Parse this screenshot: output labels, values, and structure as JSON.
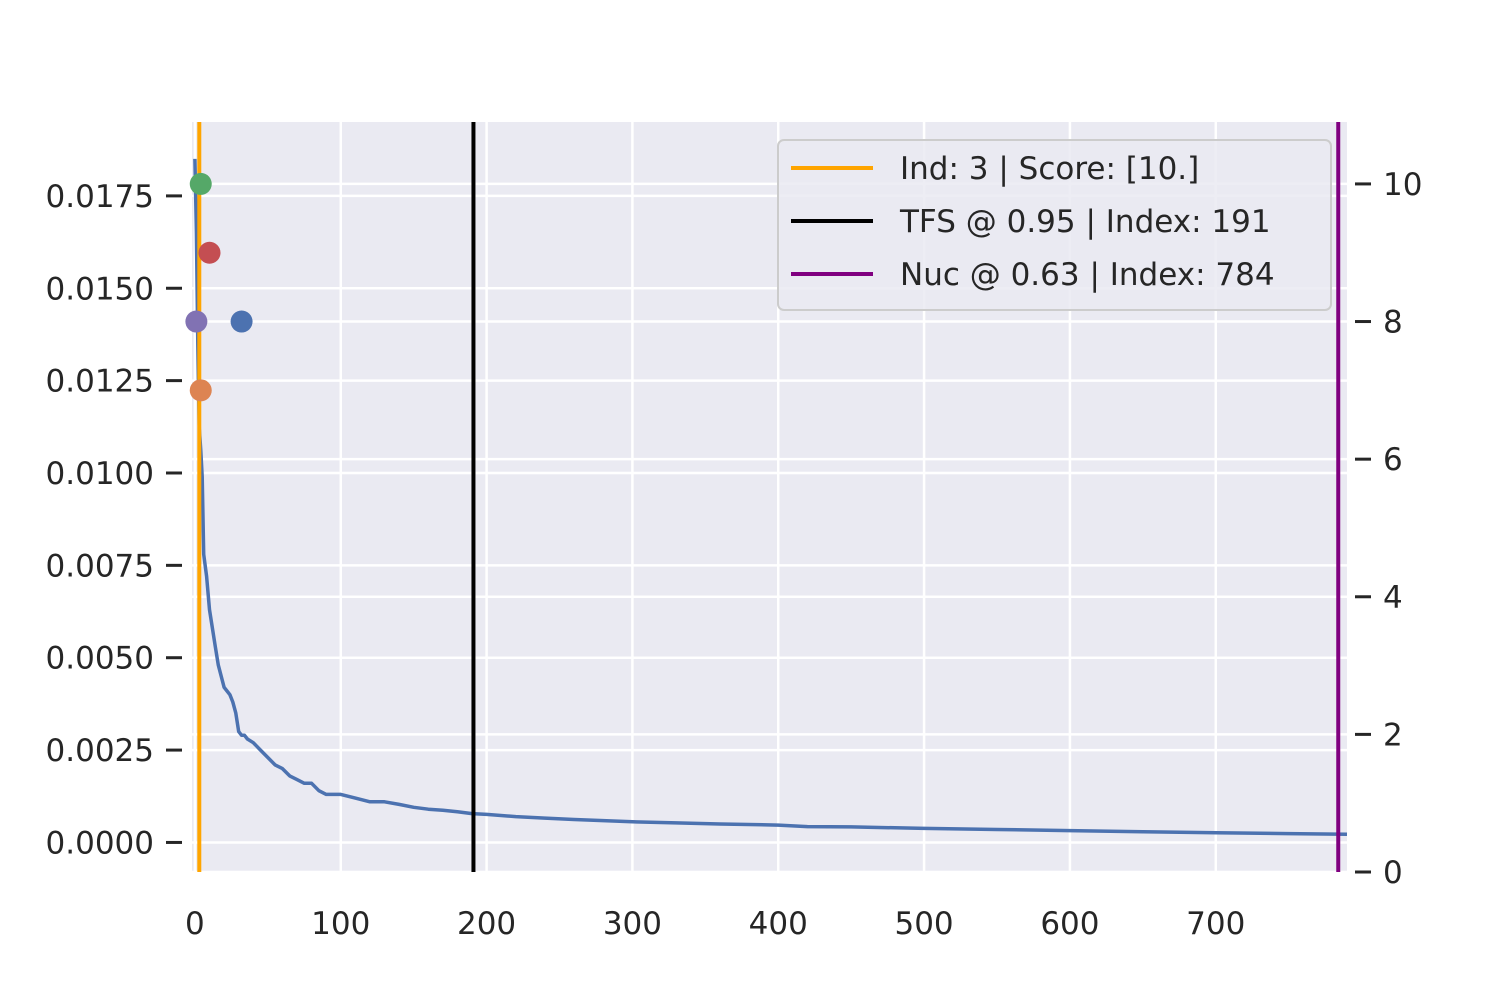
{
  "chart_data": {
    "type": "line",
    "title": "",
    "xlabel": "",
    "ylabel": "",
    "y2label": "",
    "grid": true,
    "legend_position": "top-right",
    "xlim": [
      -2,
      790
    ],
    "ylim": [
      -0.0008,
      0.0195
    ],
    "y2lim": [
      0,
      10.9
    ],
    "x_ticks": [
      "0",
      "100",
      "200",
      "300",
      "400",
      "500",
      "600",
      "700"
    ],
    "x_tick_values": [
      0,
      100,
      200,
      300,
      400,
      500,
      600,
      700
    ],
    "y_ticks": [
      "0.0000",
      "0.0025",
      "0.0050",
      "0.0075",
      "0.0100",
      "0.0125",
      "0.0150",
      "0.0175"
    ],
    "y_tick_values": [
      0,
      0.0025,
      0.005,
      0.0075,
      0.01,
      0.0125,
      0.015,
      0.0175
    ],
    "y2_ticks": [
      "0",
      "2",
      "4",
      "6",
      "8",
      "10"
    ],
    "y2_tick_values": [
      0,
      2,
      4,
      6,
      8,
      10
    ],
    "series": [
      {
        "axis": "left",
        "color": "#4c72b0",
        "x": [
          0,
          1,
          2,
          3,
          4,
          5,
          6,
          8,
          10,
          12,
          14,
          16,
          18,
          20,
          22,
          24,
          26,
          28,
          30,
          32,
          34,
          36,
          40,
          45,
          50,
          55,
          60,
          65,
          70,
          75,
          80,
          85,
          90,
          95,
          100,
          110,
          120,
          130,
          140,
          150,
          160,
          170,
          180,
          190,
          200,
          220,
          240,
          260,
          280,
          300,
          330,
          360,
          400,
          420,
          450,
          500,
          550,
          600,
          650,
          700,
          750,
          790
        ],
        "y": [
          0.0185,
          0.0165,
          0.0135,
          0.0112,
          0.0106,
          0.0099,
          0.0078,
          0.0072,
          0.0063,
          0.0058,
          0.0053,
          0.0048,
          0.0045,
          0.0042,
          0.0041,
          0.004,
          0.0038,
          0.0035,
          0.003,
          0.0029,
          0.0029,
          0.0028,
          0.0027,
          0.0025,
          0.0023,
          0.0021,
          0.002,
          0.0018,
          0.0017,
          0.0016,
          0.0016,
          0.0014,
          0.0013,
          0.0013,
          0.0013,
          0.0012,
          0.0011,
          0.0011,
          0.00103,
          0.00095,
          0.0009,
          0.00087,
          0.00083,
          0.00078,
          0.00076,
          0.0007,
          0.00066,
          0.00062,
          0.00059,
          0.00056,
          0.00053,
          0.0005,
          0.00047,
          0.00043,
          0.00042,
          0.00038,
          0.00035,
          0.00032,
          0.00029,
          0.00026,
          0.00024,
          0.00022
        ]
      }
    ],
    "points": [
      {
        "x": 4,
        "y2": 10,
        "color": "#55a868"
      },
      {
        "x": 10,
        "y2": 9,
        "color": "#c44e52"
      },
      {
        "x": 32,
        "y2": 8,
        "color": "#4c72b0"
      },
      {
        "x": 1,
        "y2": 8,
        "color": "#8172b3"
      },
      {
        "x": 4,
        "y2": 7,
        "color": "#dd8452"
      }
    ],
    "vlines": [
      {
        "x": 3,
        "color": "#ffa500",
        "label": "Ind: 3 | Score: [10.]"
      },
      {
        "x": 191,
        "color": "#000000",
        "label": "TFS @ 0.95 | Index: 191"
      },
      {
        "x": 784,
        "color": "#800080",
        "label": "Nuc @ 0.63 | Index: 784"
      }
    ],
    "colors": {
      "plot_background": "#eaeaf2",
      "grid": "#ffffff",
      "legend_background": "#eaeaf2",
      "legend_border": "#cccccc"
    }
  }
}
